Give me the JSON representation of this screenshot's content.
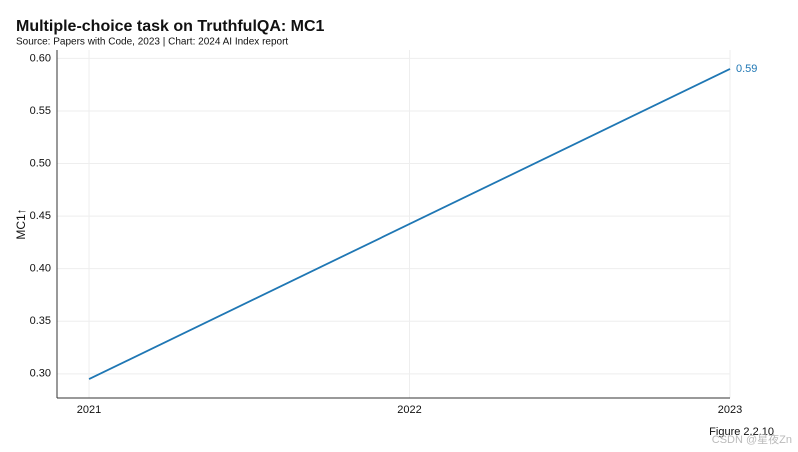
{
  "chart_data": {
    "type": "line",
    "title": "Multiple-choice task on TruthfulQA: MC1",
    "subtitle": "Source: Papers with Code, 2023 | Chart: 2024 AI Index report",
    "y_label": "MC1↑",
    "x": [
      2021,
      2023
    ],
    "values": [
      0.295,
      0.59
    ],
    "color": "#1f77b4",
    "xlim": [
      2020.9,
      2023
    ],
    "xticks": [
      2021,
      2022,
      2023
    ],
    "ylim": [
      0.277,
      0.608
    ],
    "yticks": [
      {
        "value": 0.3,
        "label": "0.30"
      },
      0.35,
      {
        "value": 0.4,
        "label": "0.40"
      },
      0.45,
      {
        "value": 0.5,
        "label": "0.50"
      },
      0.55,
      {
        "value": 0.6,
        "label": "0.60"
      }
    ],
    "grid": true,
    "figure_label": "Figure 2.2.10",
    "watermark": "CSDN @星夜Zn"
  }
}
